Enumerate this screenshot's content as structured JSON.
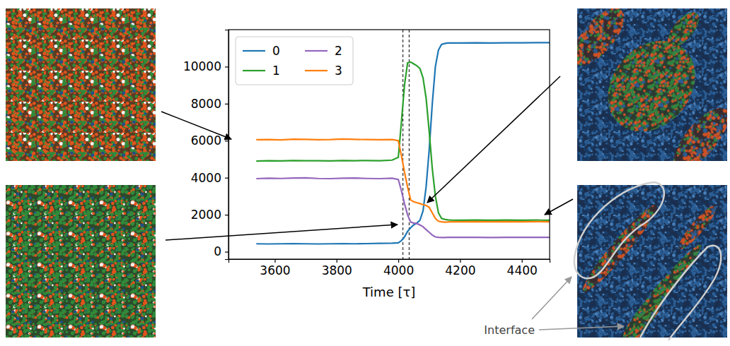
{
  "chart_data": {
    "type": "line",
    "x_label": "Time [τ]",
    "x": [
      3540,
      3580,
      3620,
      3660,
      3700,
      3740,
      3780,
      3820,
      3860,
      3900,
      3940,
      3980,
      4000,
      4010,
      4020,
      4030,
      4040,
      4050,
      4060,
      4070,
      4080,
      4090,
      4100,
      4110,
      4120,
      4130,
      4140,
      4150,
      4160,
      4170,
      4200,
      4250,
      4300,
      4350,
      4400,
      4450,
      4490
    ],
    "series": [
      {
        "name": "0",
        "color": "#1f77b4",
        "values": [
          430,
          420,
          430,
          440,
          430,
          420,
          430,
          440,
          430,
          440,
          450,
          460,
          480,
          600,
          800,
          1100,
          1300,
          1450,
          1550,
          1700,
          2200,
          3500,
          5500,
          8000,
          10000,
          10900,
          11200,
          11250,
          11280,
          11280,
          11280,
          11290,
          11280,
          11290,
          11290,
          11300,
          11300
        ]
      },
      {
        "name": "1",
        "color": "#2ca02c",
        "values": [
          4900,
          4920,
          4910,
          4930,
          4920,
          4920,
          4910,
          4930,
          4920,
          4930,
          4920,
          4950,
          5100,
          7000,
          9000,
          10200,
          10250,
          10150,
          10050,
          9900,
          9400,
          8300,
          6500,
          4500,
          3000,
          2100,
          1800,
          1750,
          1720,
          1710,
          1700,
          1710,
          1700,
          1710,
          1700,
          1710,
          1700
        ]
      },
      {
        "name": "2",
        "color": "#9467bd",
        "values": [
          3950,
          3970,
          3960,
          3980,
          3990,
          3960,
          3950,
          3970,
          3980,
          3960,
          3950,
          3970,
          3900,
          3300,
          2600,
          2000,
          1600,
          1550,
          1520,
          1450,
          1350,
          1200,
          1050,
          900,
          800,
          780,
          770,
          770,
          780,
          780,
          780,
          780,
          770,
          780,
          780,
          780,
          780
        ]
      },
      {
        "name": "3",
        "color": "#ff7f0e",
        "values": [
          6050,
          6060,
          6040,
          6080,
          6070,
          6050,
          6060,
          6090,
          6070,
          6060,
          6050,
          6060,
          6000,
          5200,
          4300,
          3500,
          2800,
          2700,
          2650,
          2600,
          2550,
          2500,
          2400,
          2100,
          1800,
          1650,
          1620,
          1600,
          1610,
          1620,
          1620,
          1630,
          1620,
          1630,
          1620,
          1630,
          1620
        ]
      }
    ],
    "xlim": [
      3450,
      4490
    ],
    "ylim": [
      -400,
      12000
    ],
    "xticks": [
      3600,
      3800,
      4000,
      4200,
      4400
    ],
    "yticks": [
      0,
      2000,
      4000,
      6000,
      8000,
      10000
    ],
    "vlines": [
      4015,
      4035
    ],
    "legend": "upper left",
    "grid": false,
    "annotation": "Interface"
  }
}
